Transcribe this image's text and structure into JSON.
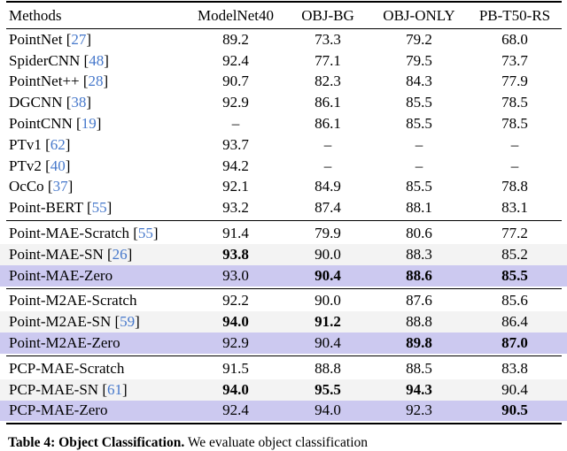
{
  "colors": {
    "highlight_purple": "#ccc9f0",
    "row_gray": "#f3f3f3",
    "citation_blue": "#4678cb",
    "rule_black": "#000000"
  },
  "table": {
    "headers": [
      "Methods",
      "ModelNet40",
      "OBJ-BG",
      "OBJ-ONLY",
      "PB-T50-RS"
    ],
    "groups": [
      {
        "rows": [
          {
            "method": "PointNet",
            "cite": "27",
            "values": [
              "89.2",
              "73.3",
              "79.2",
              "68.0"
            ],
            "bold": [
              0,
              0,
              0,
              0
            ],
            "bg": "plain"
          },
          {
            "method": "SpiderCNN",
            "cite": "48",
            "values": [
              "92.4",
              "77.1",
              "79.5",
              "73.7"
            ],
            "bold": [
              0,
              0,
              0,
              0
            ],
            "bg": "plain"
          },
          {
            "method": "PointNet++",
            "cite": "28",
            "values": [
              "90.7",
              "82.3",
              "84.3",
              "77.9"
            ],
            "bold": [
              0,
              0,
              0,
              0
            ],
            "bg": "plain"
          },
          {
            "method": "DGCNN",
            "cite": "38",
            "values": [
              "92.9",
              "86.1",
              "85.5",
              "78.5"
            ],
            "bold": [
              0,
              0,
              0,
              0
            ],
            "bg": "plain"
          },
          {
            "method": "PointCNN",
            "cite": "19",
            "values": [
              "–",
              "86.1",
              "85.5",
              "78.5"
            ],
            "bold": [
              0,
              0,
              0,
              0
            ],
            "bg": "plain"
          },
          {
            "method": "PTv1",
            "cite": "62",
            "values": [
              "93.7",
              "–",
              "–",
              "–"
            ],
            "bold": [
              0,
              0,
              0,
              0
            ],
            "bg": "plain"
          },
          {
            "method": "PTv2",
            "cite": "40",
            "values": [
              "94.2",
              "–",
              "–",
              "–"
            ],
            "bold": [
              0,
              0,
              0,
              0
            ],
            "bg": "plain"
          },
          {
            "method": "OcCo",
            "cite": "37",
            "values": [
              "92.1",
              "84.9",
              "85.5",
              "78.8"
            ],
            "bold": [
              0,
              0,
              0,
              0
            ],
            "bg": "plain"
          },
          {
            "method": "Point-BERT",
            "cite": "55",
            "values": [
              "93.2",
              "87.4",
              "88.1",
              "83.1"
            ],
            "bold": [
              0,
              0,
              0,
              0
            ],
            "bg": "plain"
          }
        ]
      },
      {
        "rows": [
          {
            "method": "Point-MAE-Scratch",
            "cite": "55",
            "values": [
              "91.4",
              "79.9",
              "80.6",
              "77.2"
            ],
            "bold": [
              0,
              0,
              0,
              0
            ],
            "bg": "plain"
          },
          {
            "method": "Point-MAE-SN",
            "cite": "26",
            "values": [
              "93.8",
              "90.0",
              "88.3",
              "85.2"
            ],
            "bold": [
              1,
              0,
              0,
              0
            ],
            "bg": "gray"
          },
          {
            "method": "Point-MAE-Zero",
            "cite": "",
            "values": [
              "93.0",
              "90.4",
              "88.6",
              "85.5"
            ],
            "bold": [
              0,
              1,
              1,
              1
            ],
            "bg": "purple"
          }
        ]
      },
      {
        "rows": [
          {
            "method": "Point-M2AE-Scratch",
            "cite": "",
            "values": [
              "92.2",
              "90.0",
              "87.6",
              "85.6"
            ],
            "bold": [
              0,
              0,
              0,
              0
            ],
            "bg": "plain"
          },
          {
            "method": "Point-M2AE-SN",
            "cite": "59",
            "values": [
              "94.0",
              "91.2",
              "88.8",
              "86.4"
            ],
            "bold": [
              1,
              1,
              0,
              0
            ],
            "bg": "gray"
          },
          {
            "method": "Point-M2AE-Zero",
            "cite": "",
            "values": [
              "92.9",
              "90.4",
              "89.8",
              "87.0"
            ],
            "bold": [
              0,
              0,
              1,
              1
            ],
            "bg": "purple"
          }
        ]
      },
      {
        "rows": [
          {
            "method": "PCP-MAE-Scratch",
            "cite": "",
            "values": [
              "91.5",
              "88.8",
              "88.5",
              "83.8"
            ],
            "bold": [
              0,
              0,
              0,
              0
            ],
            "bg": "plain"
          },
          {
            "method": "PCP-MAE-SN",
            "cite": "61",
            "values": [
              "94.0",
              "95.5",
              "94.3",
              "90.4"
            ],
            "bold": [
              1,
              1,
              1,
              0
            ],
            "bg": "gray"
          },
          {
            "method": "PCP-MAE-Zero",
            "cite": "",
            "values": [
              "92.4",
              "94.0",
              "92.3",
              "90.5"
            ],
            "bold": [
              0,
              0,
              0,
              1
            ],
            "bg": "purple"
          }
        ]
      }
    ]
  },
  "caption": {
    "label": "Table 4:",
    "title": "Object Classification.",
    "text": "We evaluate object classification"
  }
}
